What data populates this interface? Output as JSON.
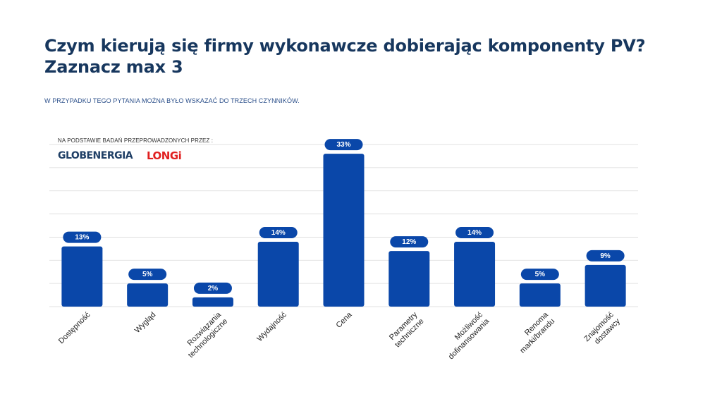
{
  "header": {
    "title_line1": "Czym kierują się firmy wykonawcze dobierając komponenty PV?",
    "title_line2": "Zaznacz max 3",
    "subtitle": "W PRZYPADKU TEGO PYTANIA MOŻNA BYŁO WSKAZAĆ DO TRZECH CZYNNIKÓW."
  },
  "source": {
    "label": "NA PODSTAWIE BADAŃ PRZEPROWADZONYCH PRZEZ :",
    "logo1": "GLOBENERGIA",
    "logo2": "LONGi"
  },
  "colors": {
    "bar": "#0a47a9",
    "title": "#17375e",
    "grid": "#d9d9d9"
  },
  "chart_data": {
    "type": "bar",
    "title": "Czym kierują się firmy wykonawcze dobierając komponenty PV? Zaznacz max 3",
    "categories": [
      [
        "Dostępność"
      ],
      [
        "Wygląd"
      ],
      [
        "Rozwiązania",
        "technologiczne"
      ],
      [
        "Wydajność"
      ],
      [
        "Cena"
      ],
      [
        "Parametry",
        "techniczne"
      ],
      [
        "Możliwość",
        "dofinansowania"
      ],
      [
        "Renoma",
        "marki/brandu"
      ],
      [
        "Znajomość",
        "dostawcy"
      ]
    ],
    "values": [
      13,
      5,
      2,
      14,
      33,
      12,
      14,
      5,
      9
    ],
    "data_labels": [
      "13%",
      "5%",
      "2%",
      "14%",
      "33%",
      "12%",
      "14%",
      "5%",
      "9%"
    ],
    "ylim": [
      0,
      35
    ],
    "grid": true,
    "xlabel": "",
    "ylabel": ""
  }
}
